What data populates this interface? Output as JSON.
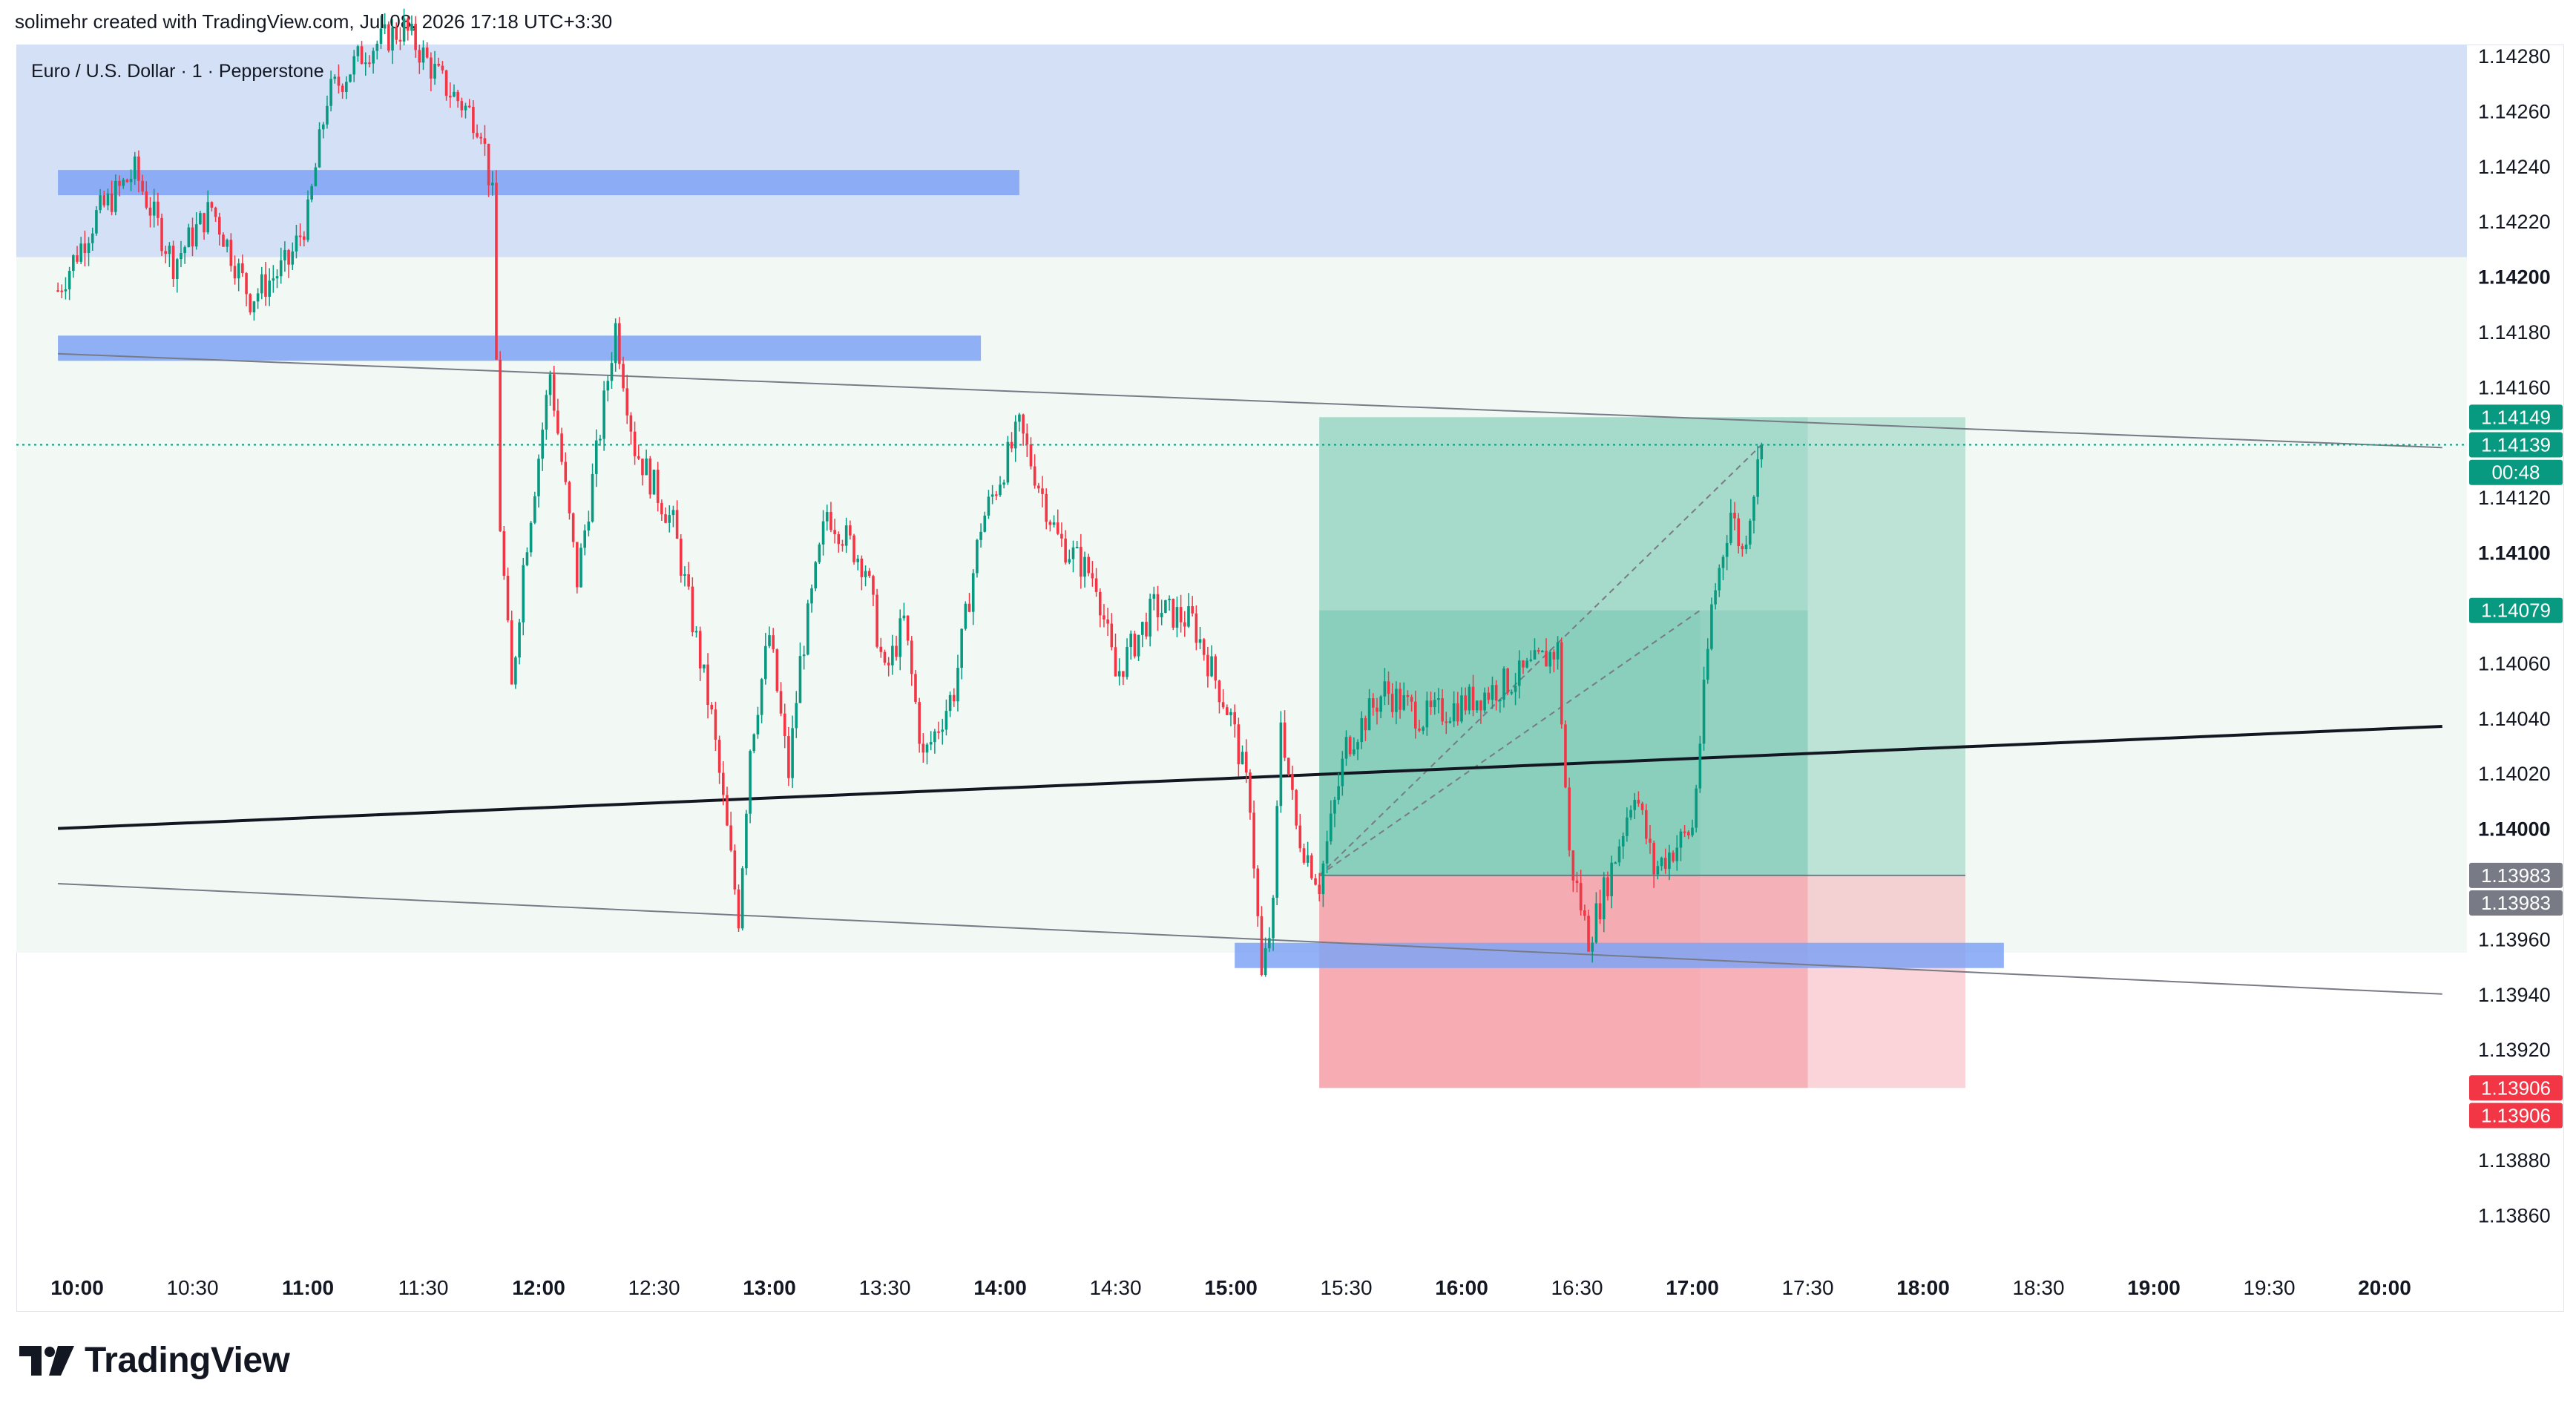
{
  "header": {
    "text": "solimehr created with TradingView.com, Jul 08, 2026 17:18 UTC+3:30"
  },
  "symbol": {
    "title": "Euro / U.S. Dollar · 1 · Pepperstone"
  },
  "logo": {
    "text": "TradingView",
    "icon": "tradingview-logo-icon"
  },
  "colors": {
    "up": "#089981",
    "down": "#f23645",
    "supply_zone": "#d4e0f5",
    "demand_bg": "#f2f9f5",
    "blue_level": "#7fa3f5",
    "target": "#7cc8b4",
    "stop": "#f5a0a8",
    "trendline": "#131722",
    "channel": "#787b86"
  },
  "price_axis": {
    "ticks": [
      "1.14280",
      "1.14260",
      "1.14240",
      "1.14220",
      "1.14200",
      "1.14180",
      "1.14160",
      "1.14120",
      "1.14100",
      "1.14060",
      "1.14040",
      "1.14020",
      "1.14000",
      "1.13960",
      "1.13940",
      "1.13920",
      "1.13880",
      "1.13860"
    ],
    "bold_ticks": [
      "1.14200",
      "1.14100",
      "1.14000"
    ],
    "tags": [
      {
        "label": "1.14149",
        "price": 1.14149,
        "color": "#089981"
      },
      {
        "label": "1.14139",
        "price": 1.14139,
        "color": "#089981"
      },
      {
        "label": "00:48",
        "price": 1.14129,
        "color": "#089981"
      },
      {
        "label": "1.14079",
        "price": 1.14079,
        "color": "#089981"
      },
      {
        "label": "1.13983",
        "price": 1.13983,
        "color": "#787b86"
      },
      {
        "label": "1.13983",
        "price": 1.13973,
        "color": "#787b86"
      },
      {
        "label": "1.13906",
        "price": 1.13906,
        "color": "#f23645"
      },
      {
        "label": "1.13906",
        "price": 1.13896,
        "color": "#f23645"
      }
    ]
  },
  "time_axis": {
    "labels": [
      "10:00",
      "10:30",
      "11:00",
      "11:30",
      "12:00",
      "12:30",
      "13:00",
      "13:30",
      "14:00",
      "14:30",
      "15:00",
      "15:30",
      "16:00",
      "16:30",
      "17:00",
      "17:30",
      "18:00",
      "18:30",
      "19:00",
      "19:30",
      "20:00"
    ],
    "bold_labels": [
      "10:00",
      "11:00",
      "12:00",
      "13:00",
      "14:00",
      "15:00",
      "16:00",
      "17:00",
      "18:00",
      "19:00",
      "20:00"
    ]
  },
  "chart_data": {
    "type": "candlestick",
    "title": "Euro / U.S. Dollar · 1 · Pepperstone",
    "x_range": [
      "09:55",
      "20:15"
    ],
    "ylim": [
      1.13845,
      1.14295
    ],
    "last_price": 1.14139,
    "ohlc_path": [
      [
        "09:55",
        1.14195
      ],
      [
        "10:05",
        1.14222
      ],
      [
        "10:15",
        1.14238
      ],
      [
        "10:25",
        1.14205
      ],
      [
        "10:35",
        1.14225
      ],
      [
        "10:45",
        1.14192
      ],
      [
        "10:55",
        1.14205
      ],
      [
        "11:00",
        1.14222
      ],
      [
        "11:05",
        1.14265
      ],
      [
        "11:15",
        1.14282
      ],
      [
        "11:25",
        1.1429
      ],
      [
        "11:35",
        1.1427
      ],
      [
        "11:45",
        1.14255
      ],
      [
        "11:48",
        1.14228
      ],
      [
        "11:50",
        1.1411
      ],
      [
        "11:53",
        1.1405
      ],
      [
        "11:56",
        1.14095
      ],
      [
        "12:03",
        1.14165
      ],
      [
        "12:10",
        1.1409
      ],
      [
        "12:15",
        1.14135
      ],
      [
        "12:20",
        1.14182
      ],
      [
        "12:25",
        1.14138
      ],
      [
        "12:35",
        1.1411
      ],
      [
        "12:45",
        1.1404
      ],
      [
        "12:52",
        1.13968
      ],
      [
        "12:55",
        1.1403
      ],
      [
        "13:00",
        1.1407
      ],
      [
        "13:05",
        1.1402
      ],
      [
        "13:08",
        1.1406
      ],
      [
        "13:15",
        1.14115
      ],
      [
        "13:25",
        1.14095
      ],
      [
        "13:30",
        1.14055
      ],
      [
        "13:35",
        1.14075
      ],
      [
        "13:40",
        1.14025
      ],
      [
        "13:48",
        1.1405
      ],
      [
        "13:55",
        1.1411
      ],
      [
        "14:05",
        1.14145
      ],
      [
        "14:10",
        1.14125
      ],
      [
        "14:15",
        1.14105
      ],
      [
        "14:25",
        1.1409
      ],
      [
        "14:30",
        1.14055
      ],
      [
        "14:40",
        1.1408
      ],
      [
        "14:50",
        1.14075
      ],
      [
        "15:00",
        1.1404
      ],
      [
        "15:05",
        1.1401
      ],
      [
        "15:08",
        1.13945
      ],
      [
        "15:11",
        1.1397
      ],
      [
        "15:13",
        1.1404
      ],
      [
        "15:17",
        1.14
      ],
      [
        "15:23",
        1.1398
      ],
      [
        "15:30",
        1.1403
      ],
      [
        "15:40",
        1.1405
      ],
      [
        "15:50",
        1.1404
      ],
      [
        "16:00",
        1.14045
      ],
      [
        "16:15",
        1.14055
      ],
      [
        "16:25",
        1.14065
      ],
      [
        "16:28",
        1.1399
      ],
      [
        "16:33",
        1.1396
      ],
      [
        "16:40",
        1.1399
      ],
      [
        "16:45",
        1.14015
      ],
      [
        "16:50",
        1.13985
      ],
      [
        "17:00",
        1.14
      ],
      [
        "17:05",
        1.1408
      ],
      [
        "17:10",
        1.14115
      ],
      [
        "17:13",
        1.141
      ],
      [
        "17:18",
        1.14139
      ]
    ]
  },
  "drawings": {
    "supply_zone": {
      "price_top": 1.14295,
      "price_bottom": 1.14207
    },
    "demand_background": {
      "price_top": 1.14207,
      "price_bottom": 1.13955
    },
    "blue_levels": [
      {
        "price": 1.14234,
        "x_start": "09:55",
        "x_end": "14:05"
      },
      {
        "price": 1.14174,
        "x_start": "09:55",
        "x_end": "13:55"
      },
      {
        "price": 1.13954,
        "x_start": "15:01",
        "x_end": "18:21"
      }
    ],
    "trendline": {
      "start": [
        "09:55",
        1.14
      ],
      "end": [
        "20:15",
        1.14037
      ]
    },
    "channel_top": {
      "start": [
        "09:55",
        1.14172
      ],
      "end": [
        "20:15",
        1.14138
      ]
    },
    "channel_bottom": {
      "start": [
        "09:55",
        1.1398
      ],
      "end": [
        "20:15",
        1.1394
      ]
    },
    "long_position_1": {
      "x_start": "15:23",
      "x_end": "18:11",
      "entry": 1.13983,
      "target": 1.14149,
      "stop": 1.13906,
      "active_until": "17:30"
    },
    "long_position_2": {
      "x_start": "15:23",
      "x_end": "17:30",
      "entry": 1.13983,
      "target": 1.14079,
      "stop": 1.13906,
      "active_until": "17:02"
    }
  }
}
